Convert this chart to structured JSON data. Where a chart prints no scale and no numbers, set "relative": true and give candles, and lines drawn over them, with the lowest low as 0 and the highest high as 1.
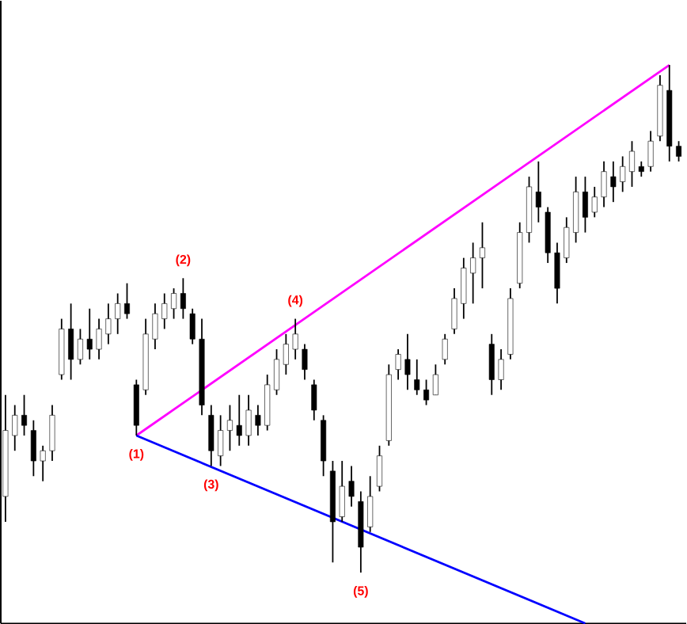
{
  "chart_data": {
    "type": "candlestick",
    "relative": true,
    "tick_labels": false,
    "categories": [
      null,
      null,
      null,
      null,
      null,
      null,
      null,
      null,
      null,
      null,
      null,
      null,
      null,
      null,
      null,
      null,
      null,
      null,
      null,
      null,
      null,
      null,
      null,
      null,
      null,
      null,
      null,
      null,
      null,
      null,
      null,
      null,
      null,
      null,
      null,
      null,
      null,
      null,
      null,
      null,
      null,
      null,
      null,
      null,
      null,
      null,
      null,
      null,
      null,
      null,
      null,
      null,
      null,
      null,
      null,
      null,
      null,
      null,
      null,
      null,
      null,
      null,
      null,
      null,
      null,
      null,
      null,
      null,
      null,
      null,
      null,
      null,
      null
    ],
    "ohlc": [
      [
        0.15,
        0.35,
        0.1,
        0.28
      ],
      [
        0.27,
        0.33,
        0.24,
        0.31
      ],
      [
        0.31,
        0.35,
        0.27,
        0.29
      ],
      [
        0.28,
        0.3,
        0.19,
        0.22
      ],
      [
        0.22,
        0.25,
        0.18,
        0.24
      ],
      [
        0.24,
        0.33,
        0.22,
        0.31
      ],
      [
        0.39,
        0.5,
        0.38,
        0.48
      ],
      [
        0.48,
        0.53,
        0.38,
        0.42
      ],
      [
        0.42,
        0.48,
        0.41,
        0.46
      ],
      [
        0.46,
        0.52,
        0.42,
        0.44
      ],
      [
        0.44,
        0.5,
        0.42,
        0.48
      ],
      [
        0.47,
        0.53,
        0.45,
        0.5
      ],
      [
        0.5,
        0.55,
        0.47,
        0.53
      ],
      [
        0.53,
        0.57,
        0.5,
        0.51
      ],
      [
        0.37,
        0.38,
        0.27,
        0.29
      ],
      [
        0.36,
        0.5,
        0.35,
        0.47
      ],
      [
        0.46,
        0.53,
        0.44,
        0.51
      ],
      [
        0.5,
        0.55,
        0.48,
        0.53
      ],
      [
        0.52,
        0.56,
        0.5,
        0.55
      ],
      [
        0.55,
        0.58,
        0.5,
        0.52
      ],
      [
        0.51,
        0.52,
        0.45,
        0.46
      ],
      [
        0.46,
        0.5,
        0.31,
        0.33
      ],
      [
        0.31,
        0.33,
        0.21,
        0.24
      ],
      [
        0.23,
        0.31,
        0.21,
        0.28
      ],
      [
        0.28,
        0.33,
        0.24,
        0.3
      ],
      [
        0.29,
        0.35,
        0.25,
        0.27
      ],
      [
        0.27,
        0.35,
        0.25,
        0.32
      ],
      [
        0.31,
        0.33,
        0.27,
        0.29
      ],
      [
        0.29,
        0.39,
        0.28,
        0.37
      ],
      [
        0.36,
        0.44,
        0.35,
        0.42
      ],
      [
        0.41,
        0.47,
        0.39,
        0.45
      ],
      [
        0.44,
        0.5,
        0.42,
        0.47
      ],
      [
        0.44,
        0.45,
        0.38,
        0.4
      ],
      [
        0.37,
        0.38,
        0.3,
        0.32
      ],
      [
        0.3,
        0.31,
        0.19,
        0.22
      ],
      [
        0.2,
        0.22,
        0.02,
        0.1
      ],
      [
        0.11,
        0.22,
        0.1,
        0.17
      ],
      [
        0.18,
        0.21,
        0.13,
        0.15
      ],
      [
        0.14,
        0.16,
        0.0,
        0.05
      ],
      [
        0.09,
        0.19,
        0.08,
        0.15
      ],
      [
        0.17,
        0.25,
        0.16,
        0.23
      ],
      [
        0.26,
        0.41,
        0.25,
        0.39
      ],
      [
        0.4,
        0.44,
        0.38,
        0.43
      ],
      [
        0.42,
        0.47,
        0.36,
        0.39
      ],
      [
        0.38,
        0.42,
        0.35,
        0.36
      ],
      [
        0.36,
        0.38,
        0.33,
        0.34
      ],
      [
        0.35,
        0.41,
        0.35,
        0.39
      ],
      [
        0.42,
        0.47,
        0.41,
        0.46
      ],
      [
        0.48,
        0.56,
        0.47,
        0.54
      ],
      [
        0.53,
        0.62,
        0.5,
        0.6
      ],
      [
        0.59,
        0.65,
        0.53,
        0.62
      ],
      [
        0.62,
        0.69,
        0.56,
        0.64
      ],
      [
        0.45,
        0.47,
        0.35,
        0.38
      ],
      [
        0.38,
        0.44,
        0.36,
        0.42
      ],
      [
        0.43,
        0.56,
        0.42,
        0.54
      ],
      [
        0.57,
        0.69,
        0.56,
        0.67
      ],
      [
        0.67,
        0.78,
        0.65,
        0.76
      ],
      [
        0.75,
        0.81,
        0.69,
        0.72
      ],
      [
        0.71,
        0.72,
        0.61,
        0.63
      ],
      [
        0.63,
        0.65,
        0.53,
        0.56
      ],
      [
        0.62,
        0.7,
        0.61,
        0.68
      ],
      [
        0.67,
        0.78,
        0.65,
        0.75
      ],
      [
        0.75,
        0.78,
        0.67,
        0.7
      ],
      [
        0.71,
        0.76,
        0.7,
        0.74
      ],
      [
        0.74,
        0.81,
        0.72,
        0.79
      ],
      [
        0.78,
        0.81,
        0.73,
        0.76
      ],
      [
        0.77,
        0.82,
        0.75,
        0.8
      ],
      [
        0.79,
        0.85,
        0.76,
        0.83
      ],
      [
        0.8,
        0.81,
        0.78,
        0.79
      ],
      [
        0.8,
        0.87,
        0.79,
        0.85
      ],
      [
        0.86,
        0.98,
        0.85,
        0.96
      ],
      [
        0.95,
        1.0,
        0.81,
        0.84
      ],
      [
        0.84,
        0.85,
        0.81,
        0.82
      ]
    ],
    "series": [
      {
        "type": "line",
        "color": "#ff00ff",
        "values": [
          null,
          null,
          null,
          null,
          null,
          null,
          null,
          null,
          null,
          null,
          null,
          null,
          null,
          null,
          0.27,
          null,
          null,
          null,
          null,
          null,
          null,
          null,
          null,
          null,
          null,
          null,
          null,
          null,
          null,
          null,
          null,
          null,
          null,
          null,
          null,
          null,
          null,
          null,
          null,
          null,
          null,
          null,
          null,
          null,
          null,
          null,
          null,
          null,
          null,
          null,
          null,
          null,
          null,
          null,
          null,
          null,
          null,
          null,
          null,
          null,
          null,
          null,
          null,
          null,
          null,
          null,
          null,
          null,
          null,
          null,
          null,
          1.0,
          null
        ]
      },
      {
        "type": "line",
        "color": "#0000ff",
        "values": [
          null,
          null,
          null,
          null,
          null,
          null,
          null,
          null,
          null,
          null,
          null,
          null,
          null,
          null,
          0.27,
          null,
          null,
          null,
          null,
          null,
          null,
          null,
          null,
          null,
          null,
          null,
          null,
          null,
          null,
          null,
          null,
          null,
          null,
          null,
          null,
          null,
          null,
          null,
          null,
          null,
          null,
          null,
          null,
          null,
          null,
          null,
          null,
          null,
          null,
          null,
          null,
          null,
          null,
          null,
          null,
          null,
          null,
          null,
          null,
          null,
          null,
          null,
          -0.1,
          null,
          null,
          null,
          null,
          null,
          null,
          null,
          null,
          null,
          null
        ]
      }
    ],
    "annotations": [
      {
        "text": "(1)",
        "y": 0.27
      },
      {
        "text": "(2)",
        "y": 0.58
      },
      {
        "text": "(3)",
        "y": 0.21
      },
      {
        "text": "(4)",
        "y": 0.5
      },
      {
        "text": "(5)",
        "y": 0.0
      }
    ]
  }
}
